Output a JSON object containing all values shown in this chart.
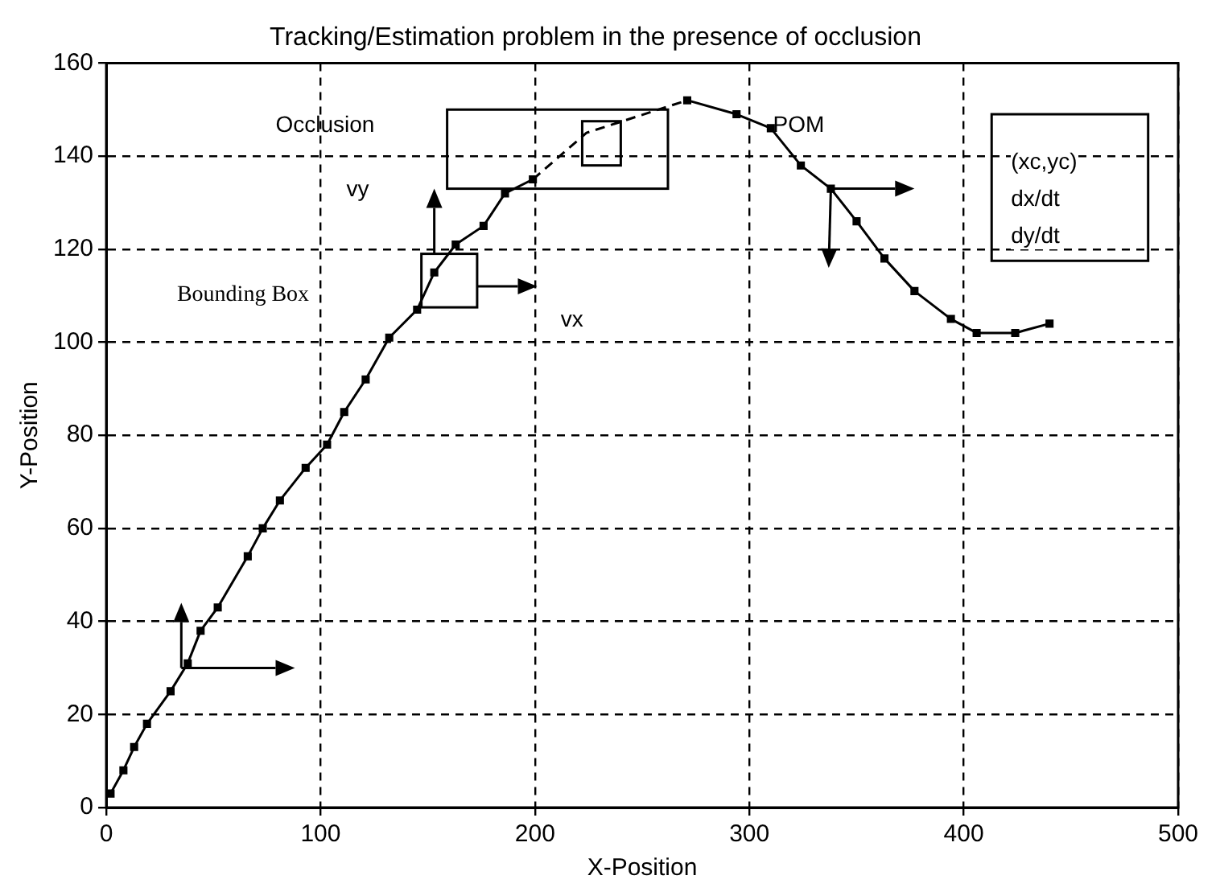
{
  "chart_data": {
    "type": "line",
    "title": "Tracking/Estimation problem in the presence of occlusion",
    "xlabel": "X-Position",
    "ylabel": "Y-Position",
    "xlim": [
      0,
      500
    ],
    "xticks": [
      0,
      100,
      200,
      300,
      400,
      500
    ],
    "ylim": [
      0,
      160
    ],
    "yticks": [
      0,
      20,
      40,
      60,
      80,
      100,
      120,
      140,
      160
    ],
    "grid": true,
    "legend": false,
    "marker": "square",
    "series": [
      {
        "color": "#000000",
        "line_style": "solid",
        "x": [
          2,
          8,
          13,
          19,
          30,
          38,
          44,
          52,
          66,
          73,
          81,
          93,
          103,
          111,
          121,
          132,
          145,
          153,
          163,
          176,
          186,
          199
        ],
        "values": [
          3,
          8,
          13,
          18,
          25,
          31,
          38,
          43,
          54,
          60,
          66,
          73,
          78,
          85,
          92,
          101,
          107,
          115,
          121,
          125,
          132,
          135
        ]
      },
      {
        "color": "#000000",
        "line_style": "dashed",
        "marker": "none",
        "x": [
          199,
          224,
          271
        ],
        "values": [
          135,
          145,
          152
        ]
      },
      {
        "color": "#000000",
        "line_style": "solid",
        "x": [
          271,
          294,
          310,
          324,
          338,
          350,
          363,
          377,
          394,
          406,
          424,
          440
        ],
        "values": [
          152,
          149,
          146,
          138,
          133,
          126,
          118,
          111,
          105,
          102,
          102,
          104
        ]
      }
    ],
    "annotations": [
      "Occlusion",
      "Bounding Box",
      "vy",
      "vx",
      "POM",
      "(xc,yc)",
      "dx/dt",
      "dy/dt"
    ]
  }
}
